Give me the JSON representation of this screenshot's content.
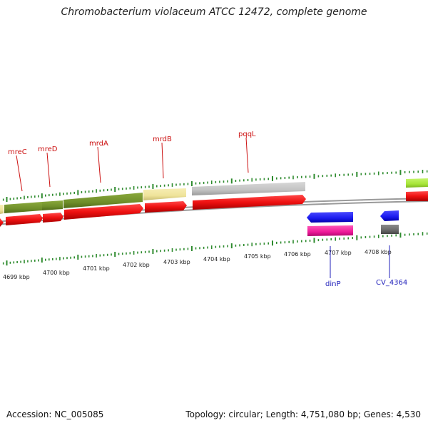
{
  "title": "Chromobacterium violaceum ATCC 12472, complete genome",
  "footer": {
    "accession": "Accession: NC_005085",
    "summary": "Topology: circular; Length: 4,751,080 bp; Genes: 4,530"
  },
  "colors": {
    "backbone": "#8f8f8f",
    "tick": "#2e8b2e",
    "gene_label_top": "#cc1111",
    "gene_label_bottom": "#2222bb",
    "olive": "#6f8f2a",
    "red": "#ee1111",
    "khaki": "#efe39a",
    "gray": "#c2c2c2",
    "lime": "#a8e63a",
    "blue": "#1a1aee",
    "magenta": "#ee1a99",
    "darkgray": "#6a6a6a"
  },
  "scale": {
    "labels": [
      "4699 kbp",
      "4700 kbp",
      "4701 kbp",
      "4702 kbp",
      "4703 kbp",
      "4704 kbp",
      "4705 kbp",
      "4706 kbp",
      "4707 kbp",
      "4708 kbp"
    ]
  },
  "genes_top": [
    {
      "name": "mreC"
    },
    {
      "name": "mreD"
    },
    {
      "name": "mrdA"
    },
    {
      "name": "mrdB"
    },
    {
      "name": "pqqL"
    }
  ],
  "genes_bottom": [
    {
      "name": "dinP"
    },
    {
      "name": "CV_4364"
    }
  ]
}
